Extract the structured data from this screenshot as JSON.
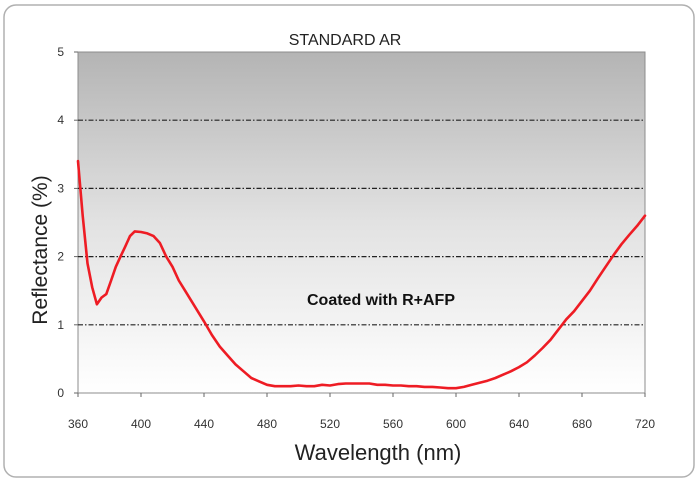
{
  "chart_data": {
    "type": "line",
    "title": "STANDARD AR",
    "xlabel": "Wavelength (nm)",
    "ylabel": "Reflectance (%)",
    "xlim": [
      360,
      720
    ],
    "ylim": [
      0,
      5
    ],
    "xticks": [
      360,
      400,
      440,
      480,
      520,
      560,
      600,
      640,
      680,
      720
    ],
    "yticks": [
      0,
      1,
      2,
      3,
      4,
      5
    ],
    "grid": "horizontal dash-dot",
    "annotation": "Coated with R+AFP",
    "series": [
      {
        "name": "Coated with R+AFP",
        "color": "#ee1c24",
        "x": [
          360,
          363,
          366,
          369,
          372,
          375,
          378,
          381,
          384,
          387,
          390,
          393,
          396,
          400,
          404,
          408,
          412,
          416,
          420,
          424,
          428,
          432,
          436,
          440,
          445,
          450,
          455,
          460,
          465,
          470,
          475,
          480,
          485,
          490,
          495,
          500,
          505,
          510,
          515,
          520,
          525,
          530,
          535,
          540,
          545,
          550,
          555,
          560,
          565,
          570,
          575,
          580,
          585,
          590,
          595,
          600,
          605,
          610,
          615,
          620,
          625,
          630,
          635,
          640,
          645,
          650,
          655,
          660,
          665,
          670,
          675,
          680,
          685,
          690,
          695,
          700,
          705,
          710,
          715,
          720
        ],
        "values": [
          3.4,
          2.6,
          1.9,
          1.55,
          1.3,
          1.4,
          1.45,
          1.65,
          1.85,
          2.0,
          2.15,
          2.3,
          2.37,
          2.36,
          2.34,
          2.3,
          2.2,
          2.0,
          1.85,
          1.65,
          1.5,
          1.35,
          1.2,
          1.05,
          0.85,
          0.68,
          0.55,
          0.42,
          0.32,
          0.22,
          0.17,
          0.12,
          0.1,
          0.1,
          0.1,
          0.11,
          0.1,
          0.1,
          0.12,
          0.11,
          0.13,
          0.14,
          0.14,
          0.14,
          0.14,
          0.12,
          0.12,
          0.11,
          0.11,
          0.1,
          0.1,
          0.09,
          0.09,
          0.08,
          0.07,
          0.07,
          0.09,
          0.12,
          0.15,
          0.18,
          0.22,
          0.27,
          0.32,
          0.38,
          0.45,
          0.55,
          0.66,
          0.78,
          0.93,
          1.08,
          1.2,
          1.35,
          1.5,
          1.68,
          1.85,
          2.02,
          2.18,
          2.32,
          2.45,
          2.6
        ]
      }
    ]
  }
}
